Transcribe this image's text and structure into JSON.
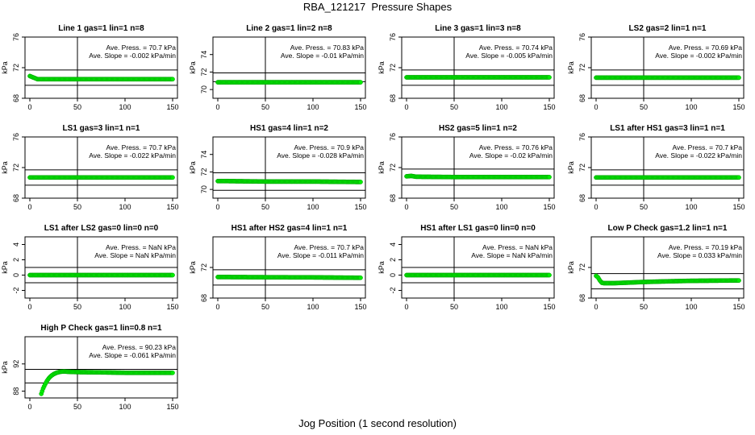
{
  "title": "RBA_121217  Pressure Shapes",
  "xlabel": "Jog Position (1 second resolution)",
  "colors": {
    "points": "#00ee00",
    "point_edge": "#00a000",
    "axes": "#000000"
  },
  "chart_data": [
    {
      "type": "scatter",
      "title": "Line 1 gas=1 lin=1 n=8",
      "ylabel": "kPa",
      "xlim": [
        0,
        150
      ],
      "ylim": [
        68,
        76
      ],
      "xticks": [
        "0",
        "50",
        "100",
        "150"
      ],
      "yticks": [
        "68",
        "72",
        "76"
      ],
      "vline": 50,
      "hlines": [
        71.7,
        69.7
      ],
      "annotation": [
        "Ave. Press. = 70.7  kPa",
        "Ave. Slope =  -0.002  kPa/min"
      ],
      "series": [
        {
          "x": [
            0,
            2,
            4,
            6,
            8,
            10,
            15,
            20,
            30,
            50,
            100,
            150
          ],
          "y": [
            70.9,
            70.8,
            70.7,
            70.6,
            70.5,
            70.5,
            70.5,
            70.5,
            70.5,
            70.5,
            70.5,
            70.5
          ]
        }
      ]
    },
    {
      "type": "scatter",
      "title": "Line 2 gas=1 lin=2 n=8",
      "ylabel": "kPa",
      "xlim": [
        0,
        150
      ],
      "ylim": [
        69,
        76
      ],
      "xticks": [
        "0",
        "50",
        "100",
        "150"
      ],
      "yticks": [
        "70",
        "72",
        "74"
      ],
      "vline": 50,
      "hlines": [
        71.9,
        70.9
      ],
      "annotation": [
        "Ave. Press. = 70.83  kPa",
        "Ave. Slope =  -0.01  kPa/min"
      ],
      "series": [
        {
          "x": [
            0,
            10,
            20,
            50,
            100,
            150
          ],
          "y": [
            70.83,
            70.83,
            70.83,
            70.83,
            70.83,
            70.83
          ]
        }
      ]
    },
    {
      "type": "scatter",
      "title": "Line 3 gas=1 lin=3 n=8",
      "ylabel": "kPa",
      "xlim": [
        0,
        150
      ],
      "ylim": [
        68,
        76
      ],
      "xticks": [
        "0",
        "50",
        "100",
        "150"
      ],
      "yticks": [
        "68",
        "72",
        "76"
      ],
      "vline": 50,
      "hlines": [
        71.7,
        69.7
      ],
      "annotation": [
        "Ave. Press. = 70.74  kPa",
        "Ave. Slope =  -0.005  kPa/min"
      ],
      "series": [
        {
          "x": [
            0,
            50,
            100,
            150
          ],
          "y": [
            70.74,
            70.74,
            70.74,
            70.74
          ]
        }
      ]
    },
    {
      "type": "scatter",
      "title": "LS2 gas=2 lin=1 n=1",
      "ylabel": "kPa",
      "xlim": [
        0,
        150
      ],
      "ylim": [
        68,
        76
      ],
      "xticks": [
        "0",
        "50",
        "100",
        "150"
      ],
      "yticks": [
        "68",
        "72",
        "76"
      ],
      "vline": 50,
      "hlines": [
        71.7,
        69.7
      ],
      "annotation": [
        "Ave. Press. = 70.69  kPa",
        "Ave. Slope =  -0.002  kPa/min"
      ],
      "series": [
        {
          "x": [
            0,
            50,
            100,
            150
          ],
          "y": [
            70.69,
            70.69,
            70.69,
            70.69
          ]
        }
      ]
    },
    {
      "type": "scatter",
      "title": "LS1 gas=3 lin=1 n=1",
      "ylabel": "kPa",
      "xlim": [
        0,
        150
      ],
      "ylim": [
        68,
        76
      ],
      "xticks": [
        "0",
        "50",
        "100",
        "150"
      ],
      "yticks": [
        "68",
        "72",
        "76"
      ],
      "vline": 50,
      "hlines": [
        71.7,
        69.7
      ],
      "annotation": [
        "Ave. Press. = 70.7  kPa",
        "Ave. Slope =  -0.022  kPa/min"
      ],
      "series": [
        {
          "x": [
            0,
            50,
            100,
            150
          ],
          "y": [
            70.7,
            70.7,
            70.7,
            70.7
          ]
        }
      ]
    },
    {
      "type": "scatter",
      "title": "HS1 gas=4 lin=1 n=2",
      "ylabel": "kPa",
      "xlim": [
        0,
        150
      ],
      "ylim": [
        69,
        76
      ],
      "xticks": [
        "0",
        "50",
        "100",
        "150"
      ],
      "yticks": [
        "70",
        "72",
        "74"
      ],
      "vline": 50,
      "hlines": [
        71.9,
        69.9
      ],
      "annotation": [
        "Ave. Press. = 70.9  kPa",
        "Ave. Slope =  -0.028  kPa/min"
      ],
      "series": [
        {
          "x": [
            0,
            10,
            50,
            100,
            150
          ],
          "y": [
            70.95,
            70.95,
            70.9,
            70.9,
            70.85
          ]
        }
      ]
    },
    {
      "type": "scatter",
      "title": "HS2 gas=5 lin=1 n=2",
      "ylabel": "kPa",
      "xlim": [
        0,
        150
      ],
      "ylim": [
        68,
        76
      ],
      "xticks": [
        "0",
        "50",
        "100",
        "150"
      ],
      "yticks": [
        "68",
        "72",
        "76"
      ],
      "vline": 50,
      "hlines": [
        71.8,
        69.7
      ],
      "annotation": [
        "Ave. Press. = 70.76  kPa",
        "Ave. Slope =  -0.02  kPa/min"
      ],
      "series": [
        {
          "x": [
            0,
            5,
            10,
            50,
            100,
            150
          ],
          "y": [
            70.85,
            70.9,
            70.8,
            70.76,
            70.76,
            70.76
          ]
        }
      ]
    },
    {
      "type": "scatter",
      "title": "LS1 after HS1 gas=3 lin=1 n=1",
      "ylabel": "kPa",
      "xlim": [
        0,
        150
      ],
      "ylim": [
        68,
        76
      ],
      "xticks": [
        "0",
        "50",
        "100",
        "150"
      ],
      "yticks": [
        "68",
        "72",
        "76"
      ],
      "vline": 50,
      "hlines": [
        71.7,
        69.7
      ],
      "annotation": [
        "Ave. Press. = 70.7  kPa",
        "Ave. Slope =  -0.022  kPa/min"
      ],
      "series": [
        {
          "x": [
            0,
            50,
            100,
            150
          ],
          "y": [
            70.7,
            70.7,
            70.7,
            70.7
          ]
        }
      ]
    },
    {
      "type": "scatter",
      "title": "LS1 after LS2 gas=0 lin=0 n=0",
      "ylabel": "kPa",
      "xlim": [
        0,
        150
      ],
      "ylim": [
        -3,
        5
      ],
      "xticks": [
        "0",
        "50",
        "100",
        "150"
      ],
      "yticks": [
        "-2",
        "0",
        "2",
        "4"
      ],
      "vline": 50,
      "hlines": [
        1,
        -1
      ],
      "annotation": [
        "Ave. Press. = NaN  kPa",
        "Ave. Slope =  NaN  kPa/min"
      ],
      "series": [
        {
          "x": [
            0,
            50,
            100,
            150
          ],
          "y": [
            0,
            0,
            0,
            0
          ]
        }
      ]
    },
    {
      "type": "scatter",
      "title": "HS1 after HS2 gas=4 lin=1 n=1",
      "ylabel": "kPa",
      "xlim": [
        0,
        150
      ],
      "ylim": [
        68,
        76
      ],
      "xticks": [
        "0",
        "50",
        "100",
        "150"
      ],
      "yticks": [
        "68",
        "72"
      ],
      "vline": 50,
      "hlines": [
        71.7,
        69.7
      ],
      "annotation": [
        "Ave. Press. = 70.7  kPa",
        "Ave. Slope =  -0.011  kPa/min"
      ],
      "series": [
        {
          "x": [
            0,
            50,
            100,
            150
          ],
          "y": [
            70.75,
            70.72,
            70.7,
            70.65
          ]
        }
      ]
    },
    {
      "type": "scatter",
      "title": "HS1 after LS1 gas=0 lin=0 n=0",
      "ylabel": "kPa",
      "xlim": [
        0,
        150
      ],
      "ylim": [
        -3,
        5
      ],
      "xticks": [
        "0",
        "50",
        "100",
        "150"
      ],
      "yticks": [
        "-2",
        "0",
        "2",
        "4"
      ],
      "vline": 50,
      "hlines": [
        1,
        -1
      ],
      "annotation": [
        "Ave. Press. = NaN  kPa",
        "Ave. Slope =  NaN  kPa/min"
      ],
      "series": [
        {
          "x": [
            0,
            50,
            100,
            150
          ],
          "y": [
            0,
            0,
            0,
            0
          ]
        }
      ]
    },
    {
      "type": "scatter",
      "title": "Low P Check gas=1.2 lin=1 n=1",
      "ylabel": "kPa",
      "xlim": [
        0,
        150
      ],
      "ylim": [
        68,
        76
      ],
      "xticks": [
        "0",
        "50",
        "100",
        "150"
      ],
      "yticks": [
        "68",
        "72"
      ],
      "vline": 50,
      "hlines": [
        71.2,
        69.2
      ],
      "annotation": [
        "Ave. Press. = 70.19  kPa",
        "Ave. Slope =  0.033  kPa/min"
      ],
      "series": [
        {
          "x": [
            0,
            2,
            4,
            6,
            8,
            12,
            20,
            30,
            50,
            80,
            100,
            150
          ],
          "y": [
            70.9,
            70.7,
            70.3,
            70.0,
            69.95,
            69.95,
            69.95,
            70.0,
            70.1,
            70.2,
            70.25,
            70.3
          ]
        }
      ]
    },
    {
      "type": "scatter",
      "title": "High P Check gas=1 lin=0.8 n=1",
      "ylabel": "kPa",
      "xlim": [
        0,
        150
      ],
      "ylim": [
        87,
        96
      ],
      "xticks": [
        "0",
        "50",
        "100",
        "150"
      ],
      "yticks": [
        "88",
        "92"
      ],
      "vline": 50,
      "hlines": [
        91.2,
        89.2
      ],
      "annotation": [
        "Ave. Press. = 90.23  kPa",
        "Ave. Slope =  -0.061  kPa/min"
      ],
      "series": [
        {
          "x": [
            12,
            14,
            16,
            18,
            20,
            22,
            25,
            28,
            32,
            36,
            40,
            50,
            80,
            100,
            150
          ],
          "y": [
            87.6,
            88.4,
            89.0,
            89.5,
            89.9,
            90.2,
            90.5,
            90.7,
            90.85,
            90.9,
            90.85,
            90.8,
            90.75,
            90.7,
            90.7
          ]
        }
      ]
    }
  ]
}
